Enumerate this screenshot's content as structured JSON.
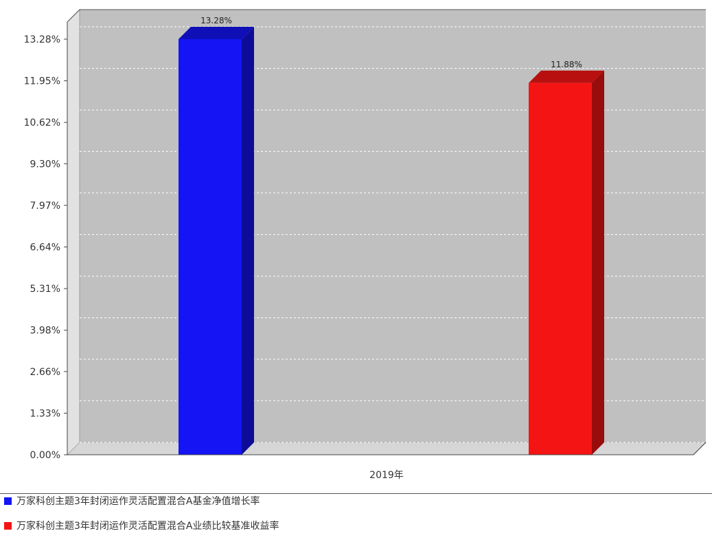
{
  "chart_data": {
    "type": "bar",
    "title": "",
    "xlabel": "",
    "ylabel": "",
    "categories": [
      "2019年"
    ],
    "series": [
      {
        "name": "万家科创主题3年封闭运作灵活配置混合A基金净值增长率",
        "values": [
          13.28
        ],
        "label": "13.28%",
        "color": "#1414f5"
      },
      {
        "name": "万家科创主题3年封闭运作灵活配置混合A业绩比较基准收益率",
        "values": [
          11.88
        ],
        "label": "11.88%",
        "color": "#f51414"
      }
    ],
    "ylim": [
      0,
      13.28
    ],
    "yticks": [
      0,
      1.33,
      2.66,
      3.98,
      5.31,
      6.64,
      7.97,
      9.3,
      10.62,
      11.95,
      13.28
    ],
    "ytick_labels": [
      "0.00%",
      "1.33%",
      "2.66%",
      "3.98%",
      "5.31%",
      "6.64%",
      "7.97%",
      "9.30%",
      "10.62%",
      "11.95%",
      "13.28%"
    ],
    "grid": true,
    "legend_position": "bottom-left"
  }
}
